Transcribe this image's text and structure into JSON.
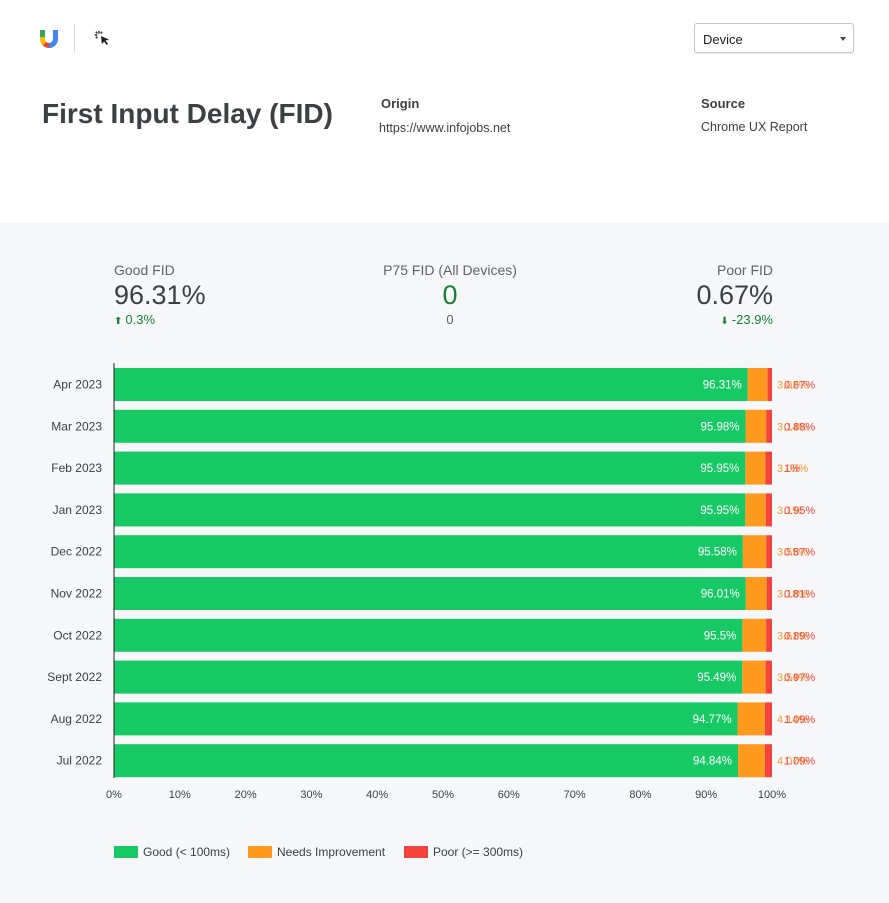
{
  "header": {
    "device_select": "Device",
    "title": "First Input Delay (FID)",
    "origin_label": "Origin",
    "origin_value": "https://www.infojobs.net",
    "source_label": "Source",
    "source_value": "Chrome UX Report",
    "logo_icon": "web-vitals-logo-icon",
    "tool_icon": "cursor-click-icon"
  },
  "kpis": {
    "good": {
      "label": "Good FID",
      "value": "96.31%",
      "change": "0.3%",
      "direction": "up"
    },
    "p75": {
      "label": "P75 FID (All Devices)",
      "value": "0",
      "sub": "0"
    },
    "poor": {
      "label": "Poor FID",
      "value": "0.67%",
      "change": "-23.9%",
      "direction": "down"
    }
  },
  "colors": {
    "good": "#17c964",
    "needs": "#ff9a1f",
    "poor": "#f4433c",
    "kpi_accent": "#188038",
    "axis": "#202124"
  },
  "chart_data": {
    "type": "bar",
    "orientation": "horizontal",
    "stacked": true,
    "categories": [
      "Apr 2023",
      "Mar 2023",
      "Feb 2023",
      "Jan 2023",
      "Dec 2022",
      "Nov 2022",
      "Oct 2022",
      "Sept 2022",
      "Aug 2022",
      "Jul 2022"
    ],
    "series": [
      {
        "name": "Good (< 100ms)",
        "values": [
          96.31,
          95.98,
          95.95,
          95.95,
          95.58,
          96.01,
          95.5,
          95.49,
          94.77,
          94.84
        ],
        "labels": [
          "96.31%",
          "95.98%",
          "95.95%",
          "95.95%",
          "95.58%",
          "96.01%",
          "95.5%",
          "95.49%",
          "94.77%",
          "94.84%"
        ]
      },
      {
        "name": "Needs Improvement",
        "values": [
          3.02,
          3.14,
          3.05,
          3.1,
          3.55,
          3.18,
          3.61,
          3.54,
          4.14,
          4.07
        ],
        "labels": [
          "3.02%",
          "3.14%",
          "3.05%",
          "3.1%",
          "3.55%",
          "3.18%",
          "3.61%",
          "3.54%",
          "4.14%",
          "4.07%"
        ]
      },
      {
        "name": "Poor (>= 300ms)",
        "values": [
          0.67,
          0.88,
          1,
          0.95,
          0.87,
          0.81,
          0.89,
          0.97,
          1.09,
          1.09
        ],
        "labels": [
          "0.67%",
          "0.88%",
          "1%",
          "0.95%",
          "0.87%",
          "0.81%",
          "0.89%",
          "0.97%",
          "1.09%",
          "1.09%"
        ]
      }
    ],
    "xlim": [
      0,
      100
    ],
    "xticks": [
      "0%",
      "10%",
      "20%",
      "30%",
      "40%",
      "50%",
      "60%",
      "70%",
      "80%",
      "90%",
      "100%"
    ],
    "legend": "bottom-left"
  }
}
